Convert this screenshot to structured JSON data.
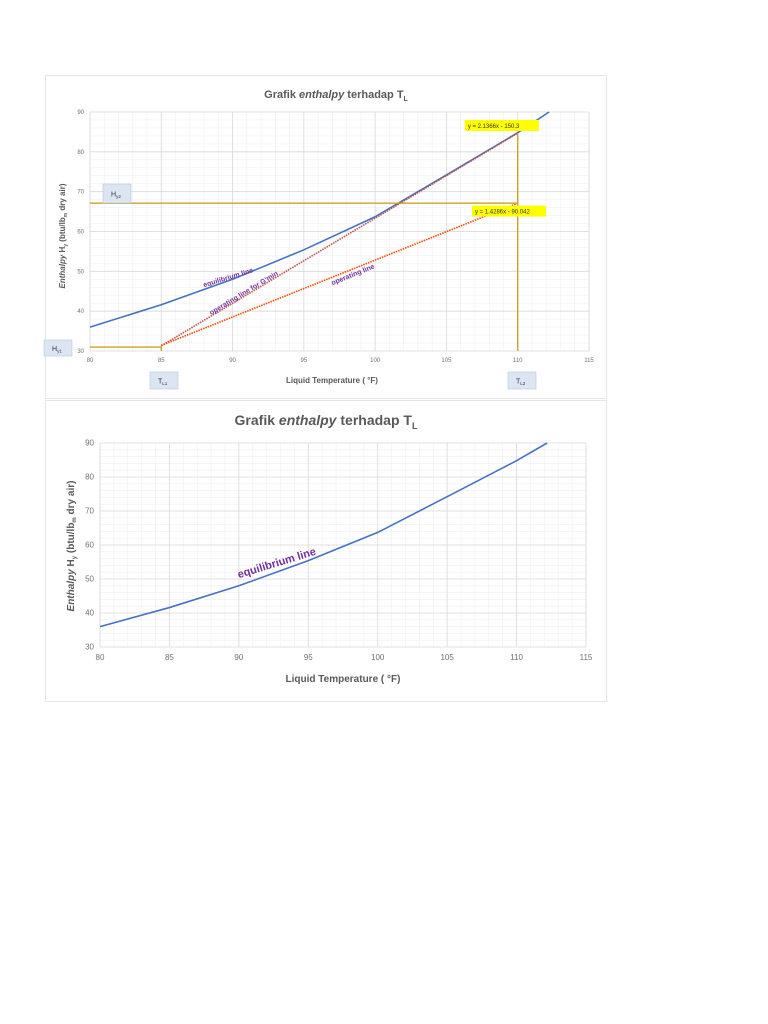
{
  "chart_data": [
    {
      "type": "line",
      "title": "Grafik enthalpy terhadap T L",
      "title_parts": {
        "pre": "Grafik ",
        "italic": "enthalpy",
        "post": " terhadap T",
        "sub": "L"
      },
      "xlabel": "Liquid Temperature ( °F)",
      "ylabel": "Enthalpy Hy (btu/lbm dry air)",
      "ylabel_parts": {
        "italic": "Enthalpy",
        "h": " H",
        "hsub": "y",
        "mid": " (btu/lb",
        "msub": "m",
        "end": " dry air)"
      },
      "xlim": [
        80,
        115
      ],
      "ylim": [
        30,
        90
      ],
      "x_ticks": [
        "80",
        "85",
        "90",
        "95",
        "100",
        "105",
        "110",
        "115"
      ],
      "y_ticks": [
        "30",
        "40",
        "50",
        "60",
        "70",
        "80",
        "90"
      ],
      "grid": true,
      "series": [
        {
          "name": "equilibrium line",
          "color": "#4472c4",
          "x": [
            80,
            85,
            90,
            95,
            100,
            105,
            110,
            112.2
          ],
          "y": [
            36,
            41.6,
            48,
            55.4,
            63.7,
            74.2,
            84.8,
            90
          ]
        },
        {
          "name": "operating line for G'min",
          "color": "#c0504d",
          "style": "dotted",
          "x": [
            85,
            110
          ],
          "y": [
            31.3,
            84.7
          ],
          "equation": "y = 2.1366x  - 150.3"
        },
        {
          "name": "operating line",
          "color": "#ff4500",
          "style": "dotted",
          "x": [
            85,
            110
          ],
          "y": [
            31.4,
            67.1
          ],
          "equation": "y = 1.4286x  - 90.042"
        },
        {
          "name": "Hy1 / TL1 guide",
          "color": "#c9a227",
          "x": [
            80,
            85,
            85
          ],
          "y": [
            31,
            31,
            30
          ]
        },
        {
          "name": "Hy2 / TL2 guide",
          "color": "#c9a227",
          "x": [
            80,
            110,
            110,
            110
          ],
          "y": [
            67.1,
            67.1,
            30,
            84.7
          ]
        }
      ],
      "annotations": [
        {
          "text": "equilibrium line",
          "x": 88,
          "y": 46
        },
        {
          "text": "operating line for G'min",
          "x": 88.5,
          "y": 39
        },
        {
          "text": "operating line",
          "x": 97,
          "y": 46.5
        },
        {
          "text": "y = 2.1366x  - 150.3",
          "x": 106.5,
          "y": 86
        },
        {
          "text": "y = 1.4286x  - 90.042",
          "x": 107,
          "y": 64.5
        }
      ],
      "markers": [
        {
          "label": "H",
          "sub": "y1"
        },
        {
          "label": "H",
          "sub": "y2"
        },
        {
          "label": "T",
          "sub": "L1"
        },
        {
          "label": "T",
          "sub": "L2"
        }
      ]
    },
    {
      "type": "line",
      "title": "Grafik enthalpy terhadap T L",
      "title_parts": {
        "pre": "Grafik ",
        "italic": "enthalpy",
        "post": " terhadap T",
        "sub": "L"
      },
      "xlabel": "Liquid Temperature ( °F)",
      "ylabel": "Enthalpy Hy (btu/lbm dry air)",
      "ylabel_parts": {
        "italic": "Enthalpy",
        "h": " H",
        "hsub": "y",
        "mid": " (btu/lb",
        "msub": "m",
        "end": " dry air)"
      },
      "xlim": [
        80,
        115
      ],
      "ylim": [
        30,
        90
      ],
      "x_ticks": [
        "80",
        "85",
        "90",
        "95",
        "100",
        "105",
        "110",
        "115"
      ],
      "y_ticks": [
        "30",
        "40",
        "50",
        "60",
        "70",
        "80",
        "90"
      ],
      "grid": true,
      "series": [
        {
          "name": "equilibrium line",
          "color": "#4472c4",
          "x": [
            80,
            85,
            90,
            95,
            100,
            105,
            110,
            112.2
          ],
          "y": [
            36,
            41.6,
            48,
            55.4,
            63.7,
            74.2,
            84.8,
            90
          ]
        }
      ],
      "annotations": [
        {
          "text": "equilibrium line",
          "x": 90,
          "y": 52
        }
      ]
    }
  ]
}
